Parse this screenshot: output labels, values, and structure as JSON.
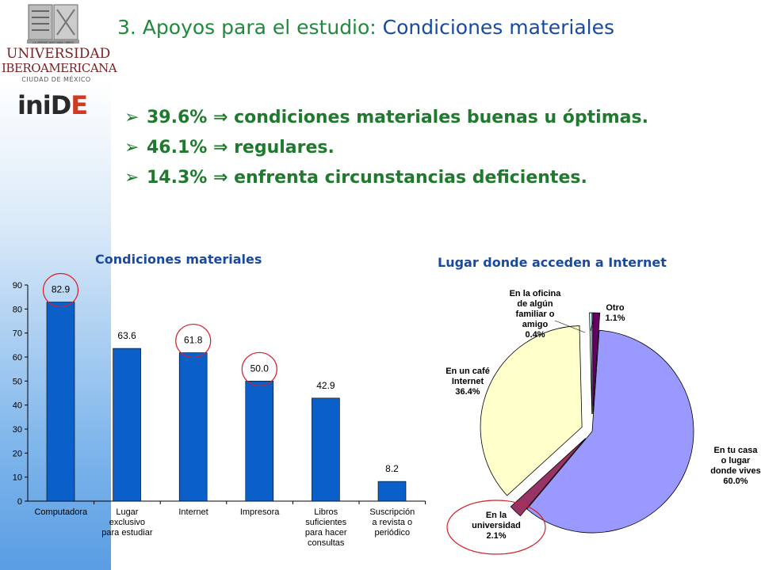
{
  "logo": {
    "university_line1": "UNIVERSIDAD",
    "university_line2": "IBEROAMERICANA",
    "city": "CIUDAD DE MÉXICO",
    "motto": "LA VERDAD NOS HARÁ LIBRES",
    "inide": "inide"
  },
  "title": {
    "part1": "3. Apoyos para el estudio: ",
    "part2": "Condiciones materiales"
  },
  "bullets": [
    {
      "text": "39.6% ⇒ condiciones materiales buenas u óptimas."
    },
    {
      "text": "46.1% ⇒ regulares."
    },
    {
      "text": "14.3% ⇒ enfrenta circunstancias deficientes."
    }
  ],
  "colors": {
    "bar_fill": "#0b5fc9",
    "highlight_circle": "#d2232a",
    "title_green": "#1f8a3b",
    "title_blue": "#1a4aa0"
  },
  "chart_data": [
    {
      "type": "bar",
      "title": "Condiciones materiales",
      "categories": [
        [
          "Computadora"
        ],
        [
          "Lugar",
          "exclusivo",
          "para estudiar"
        ],
        [
          "Internet"
        ],
        [
          "Impresora"
        ],
        [
          "Libros",
          "suficientes",
          "para hacer",
          "consultas"
        ],
        [
          "Suscripción",
          "a revista o",
          "periódico"
        ]
      ],
      "values": [
        82.9,
        63.6,
        61.8,
        50.0,
        42.9,
        8.2
      ],
      "value_labels": [
        "82.9",
        "63.6",
        "61.8",
        "50.0",
        "42.9",
        "8.2"
      ],
      "circled": [
        true,
        false,
        true,
        true,
        false,
        false
      ],
      "ylim": [
        0,
        90
      ],
      "yticks": [
        "0",
        "10",
        "20",
        "30",
        "40",
        "50",
        "60",
        "70",
        "80",
        "90"
      ],
      "grid": false
    },
    {
      "type": "pie",
      "title": "Lugar donde acceden a Internet",
      "slices": [
        {
          "label": [
            "En tu casa",
            "o lugar",
            "donde vives",
            "60.0%"
          ],
          "value": 60.0,
          "color": "#9999ff"
        },
        {
          "label": [
            "En la",
            "universidad",
            "2.1%"
          ],
          "value": 2.1,
          "color": "#993366"
        },
        {
          "label": [
            "En un café",
            "Internet",
            "36.4%"
          ],
          "value": 36.4,
          "color": "#ffffcc"
        },
        {
          "label": [
            "En la oficina",
            "de algún",
            "familiar o",
            "amigo",
            "0.4%"
          ],
          "value": 0.4,
          "color": "#ccffff"
        },
        {
          "label": [
            "Otro",
            "1.1%"
          ],
          "value": 1.1,
          "color": "#660066"
        }
      ],
      "circled_slice": 1
    }
  ]
}
